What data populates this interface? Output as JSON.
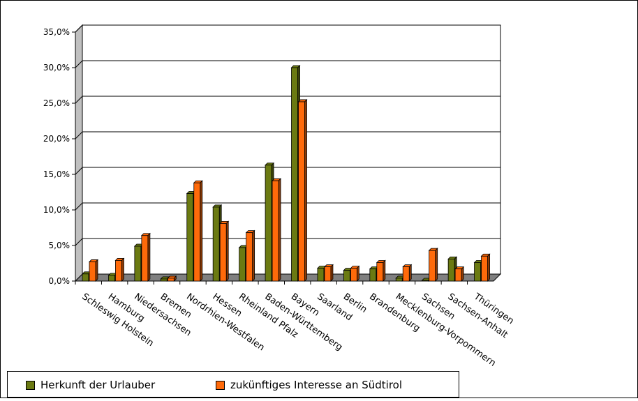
{
  "chart_data": {
    "type": "bar",
    "categories": [
      "Schleswig Holstein",
      "Hamburg",
      "Niedersachsen",
      "Bremen",
      "Nordrhien-Westfalen",
      "Hessen",
      "Rheinland Pfalz",
      "Baden-Württemberg",
      "Bayern",
      "Saarland",
      "Berlin",
      "Brandenburg",
      "Mecklenburg-Vorpommern",
      "Sachsen",
      "Sachsen-Anhalt",
      "Thüringen"
    ],
    "series": [
      {
        "name": "Herkunft der Urlauber",
        "color": "#6B7A12",
        "values": [
          1.0,
          0.8,
          4.9,
          0.3,
          12.3,
          10.4,
          4.7,
          16.3,
          30.0,
          1.8,
          1.5,
          1.7,
          0.4,
          0.1,
          3.1,
          2.6
        ]
      },
      {
        "name": "zukünftiges Interesse an Südtirol",
        "color": "#FF6A0A",
        "values": [
          2.7,
          2.9,
          6.4,
          0.4,
          13.8,
          8.1,
          6.8,
          14.1,
          25.2,
          2.0,
          1.8,
          2.6,
          2.0,
          4.3,
          1.7,
          3.5
        ]
      }
    ],
    "yticks": [
      "0,0%",
      "5,0%",
      "10,0%",
      "15,0%",
      "20,0%",
      "25,0%",
      "30,0%",
      "35,0%"
    ],
    "ylim": [
      0,
      35
    ],
    "grid": true,
    "legend_position": "bottom-left"
  }
}
